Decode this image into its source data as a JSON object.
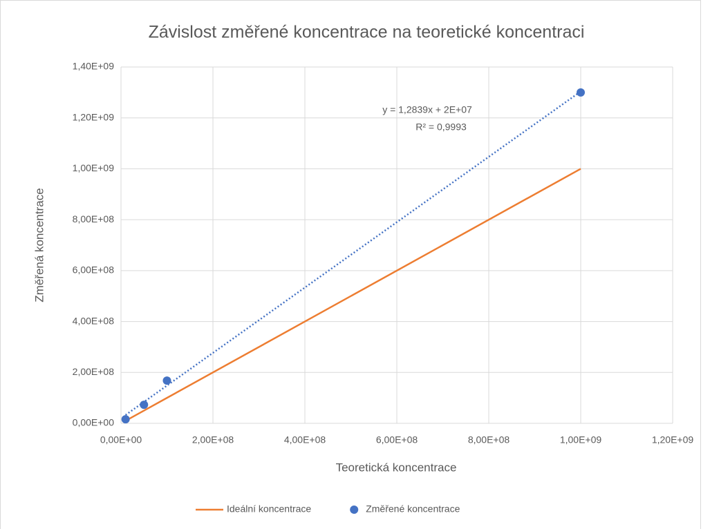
{
  "chart_data": {
    "type": "scatter",
    "title": "Závislost změřené koncentrace na teoretické koncentraci",
    "x_label": "Teoretická koncentrace",
    "y_label": "Změřená koncentrace",
    "x": [
      10000000,
      50000000,
      100000000,
      1000000000
    ],
    "series": [
      {
        "name": "Ideální koncentrace",
        "color": "#ED7D31",
        "style": "line",
        "values": [
          10000000,
          50000000,
          100000000,
          1000000000
        ]
      },
      {
        "name": "Změřené koncentrace",
        "color": "#4472C4",
        "style": "markers",
        "values": [
          16000000,
          73000000,
          168000000,
          1300000000
        ]
      }
    ],
    "trendline": {
      "series": 1,
      "color": "#4472C4",
      "slope": 1.2839,
      "intercept": 20000000,
      "equation": "y = 1,2839x + 2E+07",
      "r2": "R² = 0,9993"
    },
    "xlim": [
      0,
      1200000000
    ],
    "ylim": [
      0,
      1400000000
    ],
    "xticks": [
      {
        "value": 0,
        "label": "0,00E+00"
      },
      {
        "value": 200000000,
        "label": "2,00E+08"
      },
      {
        "value": 400000000,
        "label": "4,00E+08"
      },
      {
        "value": 600000000,
        "label": "6,00E+08"
      },
      {
        "value": 800000000,
        "label": "8,00E+08"
      },
      {
        "value": 1000000000,
        "label": "1,00E+09"
      },
      {
        "value": 1200000000,
        "label": "1,20E+09"
      }
    ],
    "yticks": [
      {
        "value": 0,
        "label": "0,00E+00"
      },
      {
        "value": 200000000,
        "label": "2,00E+08"
      },
      {
        "value": 400000000,
        "label": "4,00E+08"
      },
      {
        "value": 600000000,
        "label": "6,00E+08"
      },
      {
        "value": 800000000,
        "label": "8,00E+08"
      },
      {
        "value": 1000000000,
        "label": "1,00E+09"
      },
      {
        "value": 1200000000,
        "label": "1,20E+09"
      },
      {
        "value": 1400000000,
        "label": "1,40E+09"
      }
    ],
    "grid": true,
    "legend": "bottom"
  }
}
